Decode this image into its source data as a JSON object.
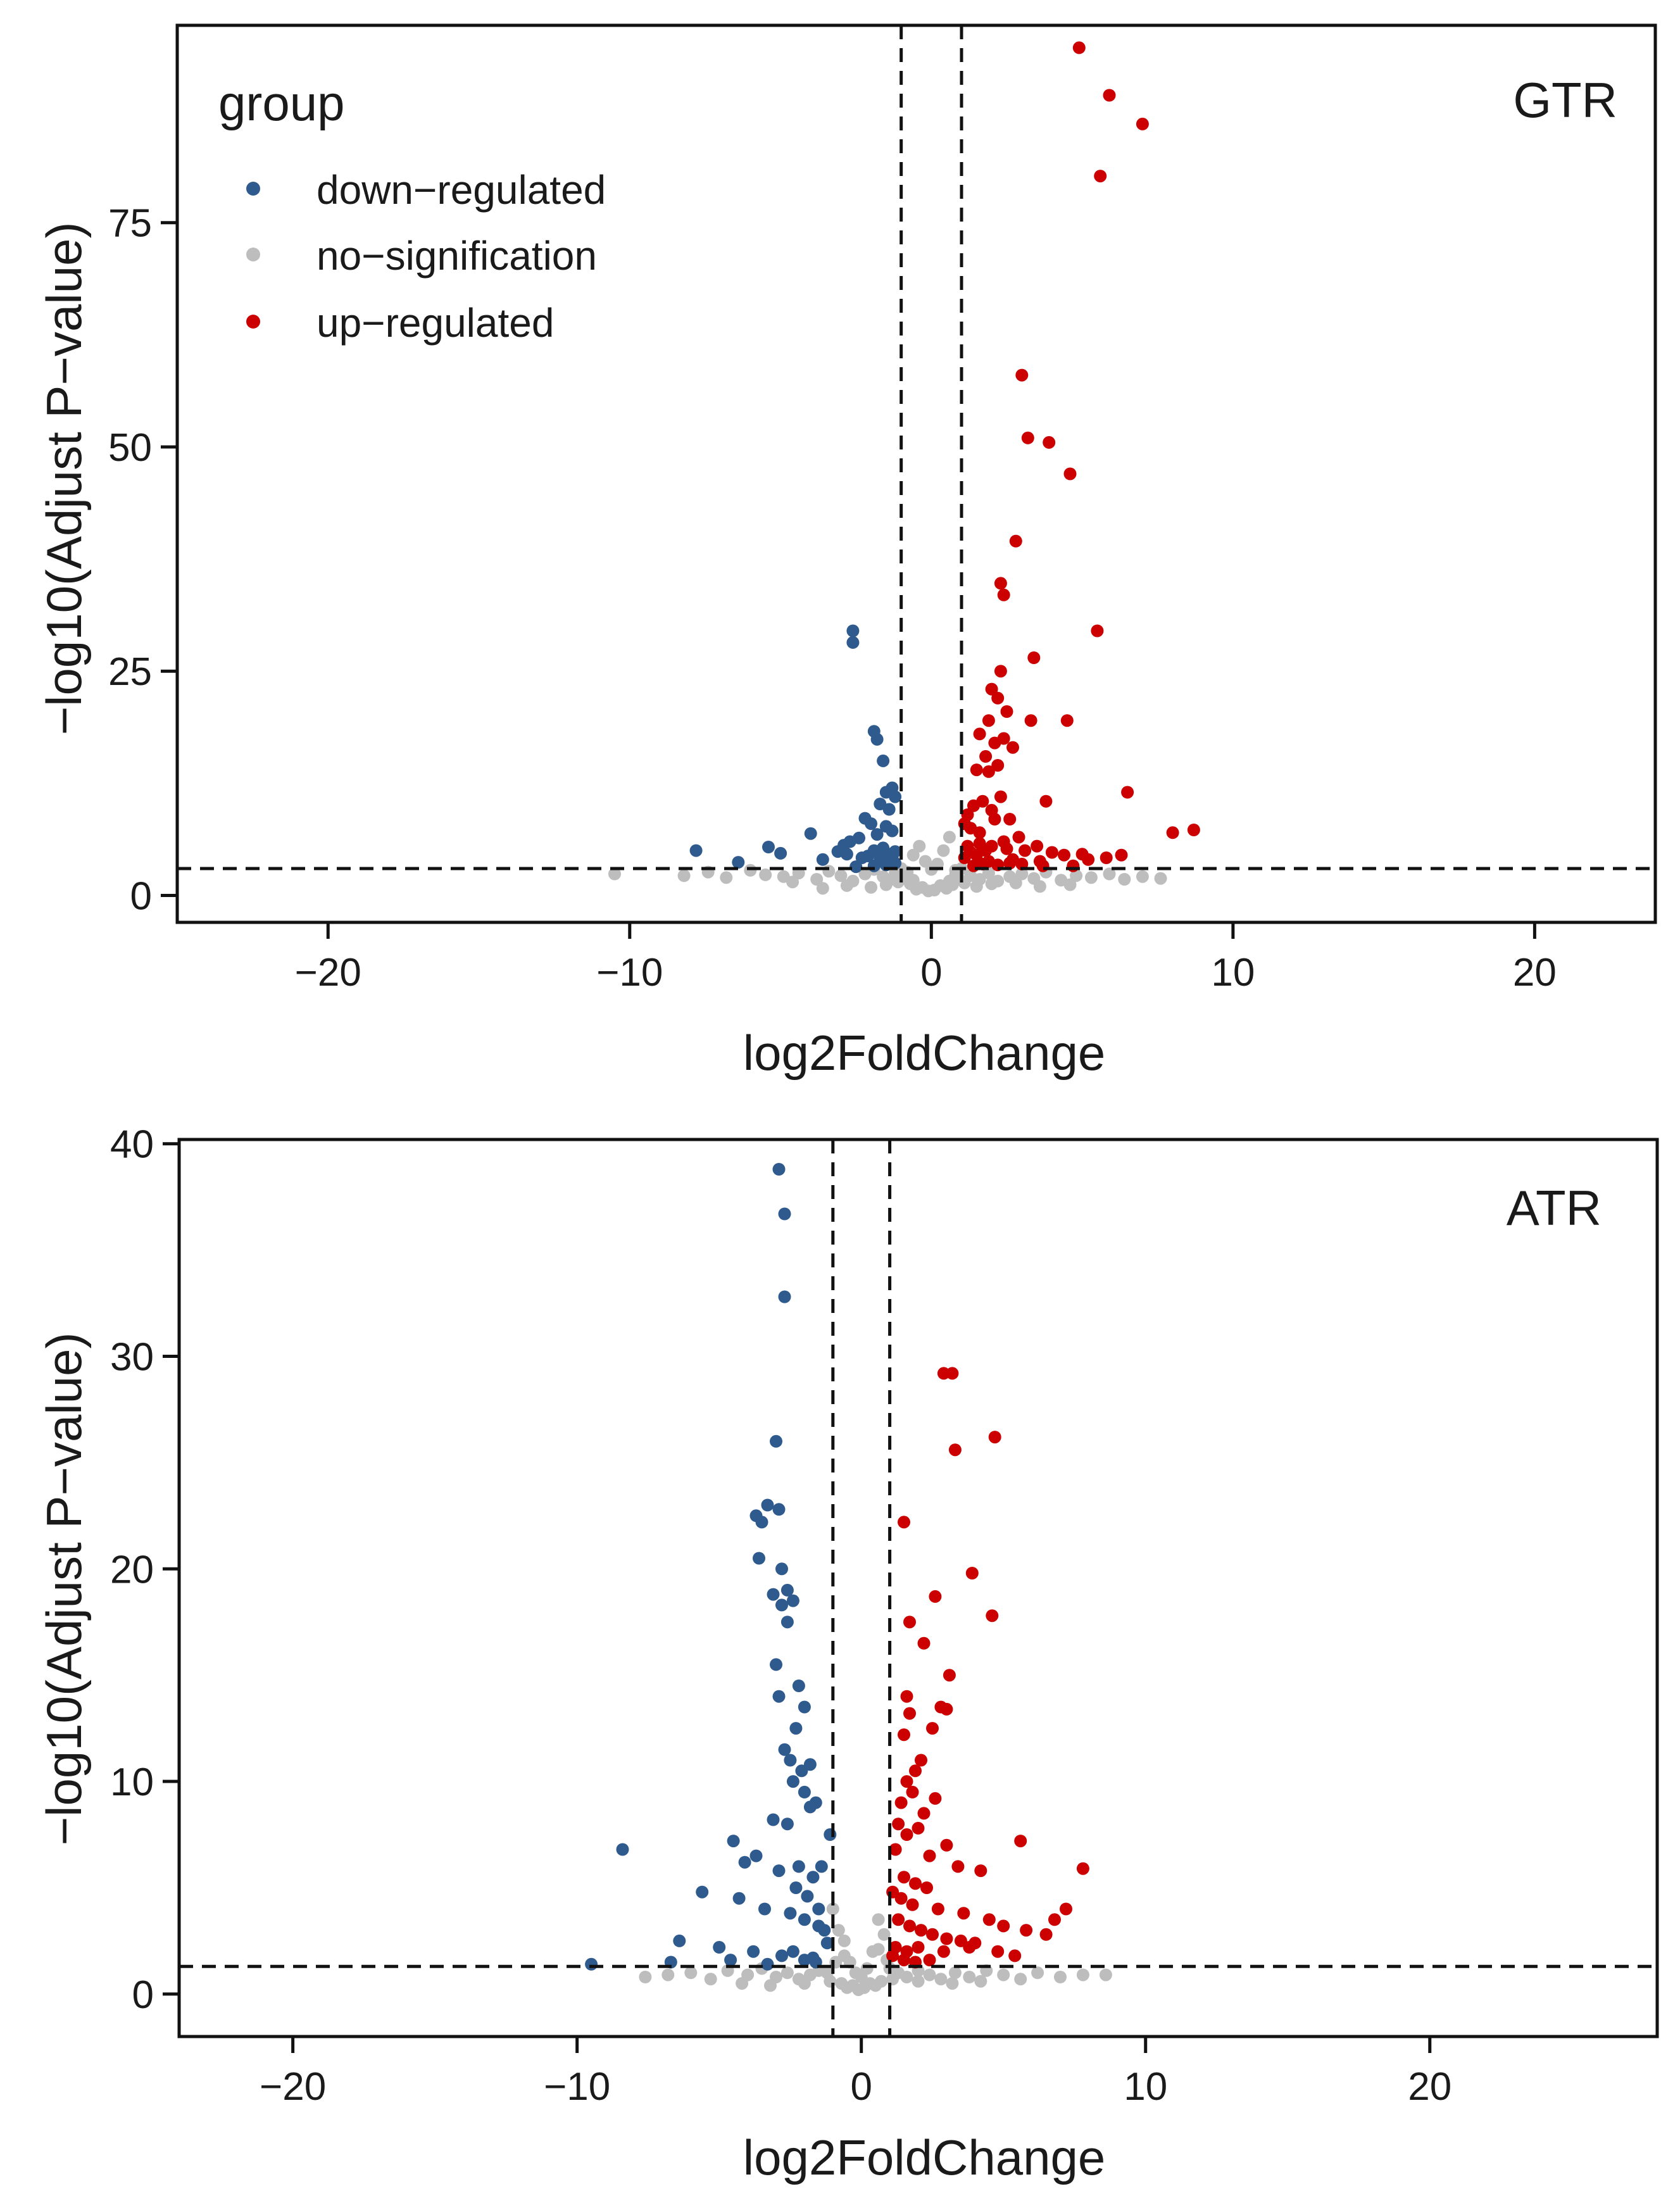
{
  "legend": {
    "title": "group",
    "entries": [
      {
        "label": "down−regulated",
        "color": "#2e5a8e"
      },
      {
        "label": "no−signification",
        "color": "#bdbdbd"
      },
      {
        "label": "up−regulated",
        "color": "#cc0000"
      }
    ]
  },
  "chart_data": [
    {
      "type": "scatter",
      "title": "GTR",
      "xlabel": "log2FoldChange",
      "ylabel": "−log10(Adjust P−value)",
      "xlim": [
        -25,
        24
      ],
      "ylim": [
        -3,
        97
      ],
      "xticks": [
        -20,
        -10,
        0,
        10,
        20
      ],
      "xtick_labels": [
        "−20",
        "−10",
        "0",
        "10",
        "20"
      ],
      "yticks": [
        0,
        25,
        50,
        75
      ],
      "ytick_labels": [
        "0",
        "25",
        "50",
        "75"
      ],
      "thresholds": {
        "fc_neg": -1,
        "fc_pos": 1,
        "padj": 3
      },
      "series": [
        {
          "name": "down−regulated",
          "color": "#2e5a8e",
          "x": [
            -2.6,
            -2.6,
            -1.9,
            -1.8,
            -1.6,
            -1.3,
            -1.5,
            -1.2,
            -1.7,
            -1.4,
            -2.2,
            -2.0,
            -1.5,
            -1.3,
            -1.8,
            -2.4,
            -2.7,
            -2.9,
            -1.6,
            -1.9,
            -1.2,
            -1.4,
            -2.1,
            -1.3,
            -1.7,
            -7.8,
            -6.4,
            -5.4,
            -5.0,
            -4.0,
            -3.6,
            -3.1,
            -2.8,
            -2.3,
            -1.6,
            -1.2,
            -1.5,
            -1.9,
            -2.5
          ],
          "y": [
            29.5,
            28.2,
            18.3,
            17.4,
            15.0,
            12.0,
            11.5,
            11.0,
            10.2,
            9.6,
            8.6,
            8.0,
            7.7,
            7.2,
            6.8,
            6.4,
            6.0,
            5.6,
            5.3,
            5.0,
            4.9,
            4.6,
            4.4,
            4.2,
            4.0,
            5.0,
            3.7,
            5.4,
            4.7,
            6.9,
            4.0,
            4.9,
            4.6,
            4.2,
            3.9,
            3.6,
            3.4,
            3.3,
            3.2
          ]
        },
        {
          "name": "no−signification",
          "color": "#bdbdbd",
          "x": [
            -10.5,
            -8.2,
            -7.4,
            -6.8,
            -6.0,
            -5.5,
            -4.9,
            -4.4,
            -3.8,
            -3.4,
            -3.0,
            -2.6,
            -2.2,
            -1.9,
            -1.6,
            -1.4,
            -1.2,
            -1.0,
            -0.8,
            -0.6,
            -0.4,
            -0.2,
            0.0,
            0.2,
            0.4,
            0.6,
            0.8,
            1.0,
            1.3,
            1.6,
            1.9,
            2.2,
            2.6,
            3.0,
            3.4,
            3.8,
            4.3,
            4.8,
            5.3,
            5.9,
            6.4,
            7.0,
            7.6,
            -0.7,
            -0.3,
            0.3,
            0.7,
            -0.5,
            0.5,
            -1.1,
            1.1,
            -0.9,
            0.9,
            -1.5,
            1.5,
            -2.0,
            2.0,
            -0.1,
            0.1,
            -0.6,
            0.6,
            -0.8,
            0.8,
            -2.8,
            2.8,
            -3.6,
            3.6,
            -4.6,
            4.6
          ],
          "y": [
            2.4,
            2.2,
            2.6,
            2.0,
            2.8,
            2.3,
            2.1,
            2.5,
            1.8,
            2.7,
            2.2,
            1.6,
            2.4,
            2.9,
            2.1,
            1.7,
            2.5,
            3.0,
            2.2,
            4.5,
            5.5,
            3.8,
            2.9,
            3.5,
            5.0,
            6.5,
            2.8,
            3.0,
            2.2,
            1.8,
            2.5,
            1.6,
            2.1,
            2.4,
            1.9,
            2.6,
            1.7,
            2.2,
            2.0,
            2.4,
            1.8,
            2.1,
            1.9,
            1.3,
            0.9,
            1.1,
            1.2,
            0.7,
            0.8,
            1.5,
            1.4,
            2.0,
            1.9,
            1.2,
            1.0,
            0.9,
            1.3,
            0.5,
            0.6,
            1.7,
            1.6,
            2.6,
            2.3,
            1.1,
            1.4,
            0.8,
            1.0,
            1.5,
            1.2
          ]
        },
        {
          "name": "up−regulated",
          "color": "#cc0000",
          "x": [
            4.9,
            5.9,
            7.0,
            5.6,
            3.0,
            3.2,
            3.9,
            4.6,
            2.8,
            2.3,
            2.4,
            3.4,
            5.5,
            2.3,
            2.0,
            2.2,
            2.5,
            1.9,
            3.3,
            4.5,
            1.6,
            2.4,
            2.1,
            2.7,
            1.8,
            1.5,
            2.2,
            1.9,
            6.5,
            3.8,
            2.3,
            1.7,
            1.4,
            2.0,
            1.2,
            2.1,
            1.1,
            2.6,
            1.3,
            1.6,
            8.7,
            8.0,
            5.0,
            2.9,
            3.5,
            3.1,
            2.4,
            2.0,
            1.8,
            1.5,
            1.3,
            1.1,
            2.7,
            4.0,
            4.4,
            5.2,
            5.8,
            6.3,
            3.6,
            2.6,
            1.7,
            2.2,
            1.9,
            1.4,
            3.0,
            4.7,
            1.2,
            2.5,
            1.6,
            3.7
          ],
          "y": [
            94.5,
            89.2,
            86.0,
            80.2,
            58.0,
            51.0,
            50.5,
            47.0,
            39.5,
            34.8,
            33.5,
            26.5,
            29.5,
            25.0,
            23.0,
            22.0,
            20.5,
            19.5,
            19.5,
            19.5,
            18.0,
            17.5,
            17.0,
            16.5,
            15.5,
            14.0,
            14.5,
            13.8,
            11.5,
            10.5,
            11.0,
            10.5,
            10.0,
            9.5,
            9.0,
            8.5,
            8.0,
            8.5,
            7.5,
            7.0,
            7.3,
            7.0,
            4.6,
            6.5,
            5.5,
            5.0,
            6.0,
            5.5,
            5.0,
            4.5,
            4.8,
            4.2,
            4.0,
            4.8,
            4.5,
            4.0,
            4.2,
            4.5,
            3.8,
            3.6,
            3.5,
            3.4,
            3.8,
            3.3,
            3.5,
            3.3,
            5.5,
            5.2,
            5.8,
            3.3
          ]
        }
      ]
    },
    {
      "type": "scatter",
      "title": "ATR",
      "xlabel": "log2FoldChange",
      "ylabel": "−log10(Adjust P−value)",
      "xlim": [
        -24,
        28
      ],
      "ylim": [
        -2,
        40.2
      ],
      "xticks": [
        -20,
        -10,
        0,
        10,
        20
      ],
      "xtick_labels": [
        "−20",
        "−10",
        "0",
        "10",
        "20"
      ],
      "yticks": [
        0,
        10,
        20,
        30,
        40
      ],
      "ytick_labels": [
        "0",
        "10",
        "20",
        "30",
        "40"
      ],
      "thresholds": {
        "fc_neg": -1,
        "fc_pos": 1,
        "padj": 1.3
      },
      "series": [
        {
          "name": "down−regulated",
          "color": "#2e5a8e",
          "x": [
            -2.9,
            -2.7,
            -2.7,
            -3.0,
            -3.3,
            -3.7,
            -3.5,
            -2.9,
            -2.8,
            -3.6,
            -2.6,
            -3.1,
            -2.8,
            -2.4,
            -2.6,
            -3.0,
            -2.9,
            -2.2,
            -2.0,
            -2.3,
            -2.7,
            -2.5,
            -1.8,
            -2.1,
            -2.4,
            -2.0,
            -1.6,
            -3.1,
            -2.6,
            -8.4,
            -4.5,
            -3.7,
            -4.1,
            -2.9,
            -2.2,
            -1.7,
            -5.6,
            -4.3,
            -3.4,
            -2.5,
            -2.0,
            -1.5,
            -1.3,
            -6.4,
            -5.0,
            -3.8,
            -2.8,
            -2.0,
            -1.6,
            -9.5,
            -6.7,
            -4.6,
            -3.3,
            -2.4,
            -1.7,
            -1.2,
            -1.9,
            -1.4,
            -2.3,
            -1.5,
            -1.1,
            -1.8
          ],
          "y": [
            38.8,
            36.7,
            32.8,
            26.0,
            23.0,
            22.5,
            22.2,
            22.8,
            20.0,
            20.5,
            19.0,
            18.8,
            18.3,
            18.5,
            17.5,
            15.5,
            14.0,
            14.5,
            13.5,
            12.5,
            11.5,
            11.0,
            10.8,
            10.5,
            10.0,
            9.5,
            9.0,
            8.2,
            8.0,
            6.8,
            7.2,
            6.5,
            6.2,
            5.8,
            6.0,
            5.5,
            4.8,
            4.5,
            4.0,
            3.8,
            3.5,
            3.2,
            3.0,
            2.5,
            2.2,
            2.0,
            1.8,
            1.6,
            1.5,
            1.4,
            1.5,
            1.6,
            1.4,
            2.0,
            1.7,
            2.4,
            4.6,
            6.0,
            5.0,
            4.0,
            7.5,
            8.8
          ]
        },
        {
          "name": "no−signification",
          "color": "#bdbdbd",
          "x": [
            -7.6,
            -6.8,
            -6.0,
            -5.3,
            -4.7,
            -4.0,
            -3.5,
            -3.0,
            -2.6,
            -2.2,
            -1.8,
            -1.5,
            -1.2,
            -1.0,
            -0.8,
            -0.6,
            -0.4,
            -0.2,
            0.0,
            0.2,
            0.4,
            0.6,
            0.8,
            1.0,
            1.3,
            1.6,
            2.0,
            2.4,
            2.8,
            3.3,
            3.8,
            4.4,
            5.0,
            5.6,
            6.2,
            7.0,
            7.8,
            8.6,
            -0.7,
            -0.3,
            0.3,
            0.7,
            -0.5,
            0.5,
            -1.1,
            1.1,
            -0.9,
            0.9,
            -2.0,
            2.0,
            -3.2,
            3.2,
            -4.2,
            4.2,
            -0.1,
            0.1,
            -0.6,
            0.6
          ],
          "y": [
            0.8,
            0.9,
            1.0,
            0.7,
            1.1,
            0.9,
            1.2,
            0.8,
            1.0,
            0.7,
            0.9,
            1.1,
            1.0,
            4.0,
            3.0,
            2.5,
            1.5,
            1.0,
            0.8,
            1.2,
            2.0,
            3.5,
            2.8,
            1.2,
            1.0,
            0.8,
            1.1,
            0.9,
            0.7,
            1.0,
            0.8,
            1.1,
            0.9,
            0.7,
            1.0,
            0.8,
            0.9,
            0.9,
            0.5,
            0.4,
            0.5,
            0.6,
            0.3,
            0.4,
            0.6,
            0.7,
            1.5,
            1.6,
            0.5,
            0.6,
            0.4,
            0.5,
            0.5,
            0.6,
            0.2,
            0.3,
            1.8,
            2.1
          ]
        },
        {
          "name": "up−regulated",
          "color": "#cc0000",
          "x": [
            2.9,
            3.2,
            4.7,
            3.3,
            1.5,
            3.9,
            2.6,
            4.6,
            1.7,
            2.2,
            3.1,
            1.6,
            2.8,
            3.0,
            1.7,
            2.5,
            1.5,
            2.1,
            1.9,
            1.6,
            1.8,
            2.6,
            1.4,
            2.2,
            1.3,
            2.0,
            5.6,
            7.8,
            3.0,
            1.6,
            1.2,
            2.4,
            3.4,
            4.2,
            7.2,
            6.8,
            5.0,
            1.5,
            1.9,
            2.3,
            1.1,
            1.4,
            1.8,
            2.7,
            3.6,
            4.5,
            5.8,
            6.5,
            1.3,
            1.7,
            2.1,
            2.5,
            3.0,
            3.5,
            4.0,
            1.2,
            1.6,
            2.0,
            2.9,
            1.1,
            1.5,
            1.9,
            2.4,
            3.8,
            4.8,
            5.4
          ],
          "y": [
            29.2,
            29.2,
            26.2,
            25.6,
            22.2,
            19.8,
            18.7,
            17.8,
            17.5,
            16.5,
            15.0,
            14.0,
            13.5,
            13.4,
            13.2,
            12.5,
            12.2,
            11.0,
            10.5,
            10.0,
            9.5,
            9.2,
            9.0,
            8.5,
            8.0,
            7.8,
            7.2,
            5.9,
            7.0,
            7.5,
            6.8,
            6.5,
            6.0,
            5.8,
            4.0,
            3.5,
            3.2,
            5.5,
            5.2,
            5.0,
            4.8,
            4.5,
            4.2,
            4.0,
            3.8,
            3.5,
            3.0,
            2.8,
            3.5,
            3.2,
            3.0,
            2.8,
            2.6,
            2.5,
            2.4,
            2.2,
            2.0,
            2.2,
            2.0,
            1.8,
            1.6,
            1.5,
            1.6,
            2.2,
            2.0,
            1.8
          ]
        }
      ]
    }
  ]
}
